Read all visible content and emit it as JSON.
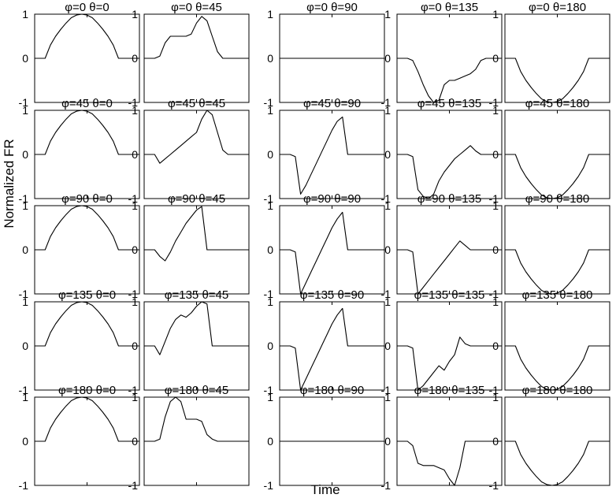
{
  "chart_data": {
    "type": "line",
    "xlabel": "Time",
    "ylabel": "Normalized FR",
    "ylim": [
      -1,
      1
    ],
    "yticks": [
      "1",
      "0",
      "-1"
    ],
    "grid": false,
    "x": [
      0,
      0.05,
      0.1,
      0.15,
      0.2,
      0.25,
      0.3,
      0.35,
      0.4,
      0.45,
      0.5,
      0.55,
      0.6,
      0.65,
      0.7,
      0.75,
      0.8,
      0.85,
      0.9,
      0.95,
      1
    ],
    "panels": [
      {
        "title": "φ=0 θ=0",
        "values": [
          0,
          0,
          0,
          0.3,
          0.5,
          0.66,
          0.8,
          0.92,
          0.98,
          1,
          0.98,
          0.92,
          0.8,
          0.66,
          0.5,
          0.3,
          0,
          0,
          0,
          0,
          0
        ]
      },
      {
        "title": "φ=0 θ=45",
        "values": [
          0,
          0,
          0,
          0.05,
          0.35,
          0.5,
          0.5,
          0.5,
          0.5,
          0.55,
          0.8,
          0.95,
          0.85,
          0.5,
          0.15,
          0,
          0,
          0,
          0,
          0,
          0
        ]
      },
      {
        "title": "φ=0 θ=90",
        "values": [
          0,
          0,
          0,
          0,
          0,
          0,
          0,
          0,
          0,
          0,
          0,
          0,
          0,
          0,
          0,
          0,
          0,
          0,
          0,
          0,
          0
        ]
      },
      {
        "title": "φ=0 θ=135",
        "values": [
          0,
          0,
          0,
          -0.05,
          -0.3,
          -0.6,
          -0.85,
          -1,
          -0.95,
          -0.6,
          -0.5,
          -0.5,
          -0.45,
          -0.4,
          -0.35,
          -0.25,
          -0.05,
          0,
          0,
          0,
          0
        ]
      },
      {
        "title": "φ=0 θ=180",
        "values": [
          0,
          0,
          0,
          -0.3,
          -0.5,
          -0.66,
          -0.8,
          -0.92,
          -0.98,
          -1,
          -0.98,
          -0.92,
          -0.8,
          -0.66,
          -0.5,
          -0.3,
          0,
          0,
          0,
          0,
          0
        ]
      },
      {
        "title": "φ=45 θ=0",
        "values": [
          0,
          0,
          0,
          0.3,
          0.5,
          0.66,
          0.8,
          0.92,
          0.98,
          1,
          0.98,
          0.92,
          0.8,
          0.66,
          0.5,
          0.3,
          0,
          0,
          0,
          0,
          0
        ]
      },
      {
        "title": "φ=45 θ=45",
        "values": [
          0,
          0,
          0,
          -0.2,
          -0.1,
          0,
          0.1,
          0.2,
          0.3,
          0.4,
          0.5,
          0.8,
          1,
          0.9,
          0.5,
          0.1,
          0,
          0,
          0,
          0,
          0
        ]
      },
      {
        "title": "φ=45 θ=90",
        "values": [
          0,
          0,
          0,
          -0.05,
          -0.9,
          -0.7,
          -0.45,
          -0.2,
          0.05,
          0.3,
          0.55,
          0.75,
          0.85,
          0,
          0,
          0,
          0,
          0,
          0,
          0,
          0
        ]
      },
      {
        "title": "φ=45 θ=135",
        "values": [
          0,
          0,
          0,
          -0.05,
          -0.8,
          -0.95,
          -1,
          -0.9,
          -0.6,
          -0.4,
          -0.25,
          -0.1,
          0,
          0.1,
          0.2,
          0.08,
          0,
          0,
          0,
          0,
          0
        ]
      },
      {
        "title": "φ=45 θ=180",
        "values": [
          0,
          0,
          0,
          -0.3,
          -0.5,
          -0.66,
          -0.8,
          -0.92,
          -0.98,
          -1,
          -0.98,
          -0.92,
          -0.8,
          -0.66,
          -0.5,
          -0.3,
          0,
          0,
          0,
          0,
          0
        ]
      },
      {
        "title": "φ=90 θ=0",
        "values": [
          0,
          0,
          0,
          0.3,
          0.5,
          0.66,
          0.8,
          0.92,
          0.98,
          1,
          0.98,
          0.92,
          0.8,
          0.66,
          0.5,
          0.3,
          0,
          0,
          0,
          0,
          0
        ]
      },
      {
        "title": "φ=90 θ=45",
        "values": [
          0,
          0,
          0,
          -0.15,
          -0.25,
          -0.05,
          0.2,
          0.4,
          0.6,
          0.75,
          0.9,
          0.98,
          0,
          0,
          0,
          0,
          0,
          0,
          0,
          0,
          0
        ]
      },
      {
        "title": "φ=90 θ=90",
        "values": [
          0,
          0,
          0,
          -0.05,
          -1,
          -0.75,
          -0.5,
          -0.25,
          0,
          0.25,
          0.5,
          0.7,
          0.85,
          0,
          0,
          0,
          0,
          0,
          0,
          0,
          0
        ]
      },
      {
        "title": "φ=90 θ=135",
        "values": [
          0,
          0,
          0,
          -0.05,
          -1,
          -0.85,
          -0.7,
          -0.55,
          -0.4,
          -0.25,
          -0.1,
          0.05,
          0.2,
          0.1,
          0,
          0,
          0,
          0,
          0,
          0,
          0
        ]
      },
      {
        "title": "φ=90 θ=180",
        "values": [
          0,
          0,
          0,
          -0.3,
          -0.5,
          -0.66,
          -0.8,
          -0.92,
          -0.98,
          -1,
          -0.98,
          -0.92,
          -0.8,
          -0.66,
          -0.5,
          -0.3,
          0,
          0,
          0,
          0,
          0
        ]
      },
      {
        "title": "φ=135 θ=0",
        "values": [
          0,
          0,
          0,
          0.3,
          0.5,
          0.66,
          0.8,
          0.92,
          0.98,
          1,
          0.98,
          0.92,
          0.8,
          0.66,
          0.5,
          0.3,
          0,
          0,
          0,
          0,
          0
        ]
      },
      {
        "title": "φ=135 θ=45",
        "values": [
          0,
          0,
          0,
          -0.2,
          0.1,
          0.4,
          0.6,
          0.7,
          0.65,
          0.75,
          0.9,
          1,
          0.95,
          0,
          0,
          0,
          0,
          0,
          0,
          0,
          0
        ]
      },
      {
        "title": "φ=135 θ=90",
        "values": [
          0,
          0,
          0,
          -0.05,
          -1,
          -0.75,
          -0.5,
          -0.25,
          0,
          0.25,
          0.5,
          0.7,
          0.85,
          0,
          0,
          0,
          0,
          0,
          0,
          0,
          0
        ]
      },
      {
        "title": "φ=135 θ=135",
        "values": [
          0,
          0,
          0,
          -0.05,
          -1,
          -0.9,
          -0.75,
          -0.6,
          -0.45,
          -0.55,
          -0.35,
          -0.2,
          0.2,
          0.05,
          0,
          0,
          0,
          0,
          0,
          0,
          0
        ]
      },
      {
        "title": "φ=135 θ=180",
        "values": [
          0,
          0,
          0,
          -0.3,
          -0.5,
          -0.66,
          -0.8,
          -0.92,
          -0.98,
          -1,
          -0.98,
          -0.92,
          -0.8,
          -0.66,
          -0.5,
          -0.3,
          0,
          0,
          0,
          0,
          0
        ]
      },
      {
        "title": "φ=180 θ=0",
        "values": [
          0,
          0,
          0,
          0.3,
          0.5,
          0.66,
          0.8,
          0.92,
          0.98,
          1,
          0.98,
          0.92,
          0.8,
          0.66,
          0.5,
          0.3,
          0,
          0,
          0,
          0,
          0
        ]
      },
      {
        "title": "φ=180 θ=45",
        "values": [
          0,
          0,
          0,
          0.05,
          0.55,
          0.9,
          1,
          0.9,
          0.5,
          0.5,
          0.5,
          0.45,
          0.15,
          0.05,
          0,
          0,
          0,
          0,
          0,
          0,
          0
        ]
      },
      {
        "title": "φ=180 θ=90",
        "values": [
          0,
          0,
          0,
          0,
          0,
          0,
          0,
          0,
          0,
          0,
          0,
          0,
          0,
          0,
          0,
          0,
          0,
          0,
          0,
          0,
          0
        ]
      },
      {
        "title": "φ=180 θ=135",
        "values": [
          0,
          0,
          0,
          -0.1,
          -0.5,
          -0.55,
          -0.55,
          -0.55,
          -0.6,
          -0.65,
          -0.85,
          -1,
          -0.6,
          0,
          0,
          0,
          0,
          0,
          0,
          0,
          0
        ]
      },
      {
        "title": "φ=180 θ=180",
        "values": [
          0,
          0,
          0,
          -0.3,
          -0.5,
          -0.66,
          -0.8,
          -0.92,
          -0.98,
          -1,
          -0.98,
          -0.92,
          -0.8,
          -0.66,
          -0.5,
          -0.3,
          0,
          0,
          0,
          0,
          0
        ]
      }
    ]
  }
}
